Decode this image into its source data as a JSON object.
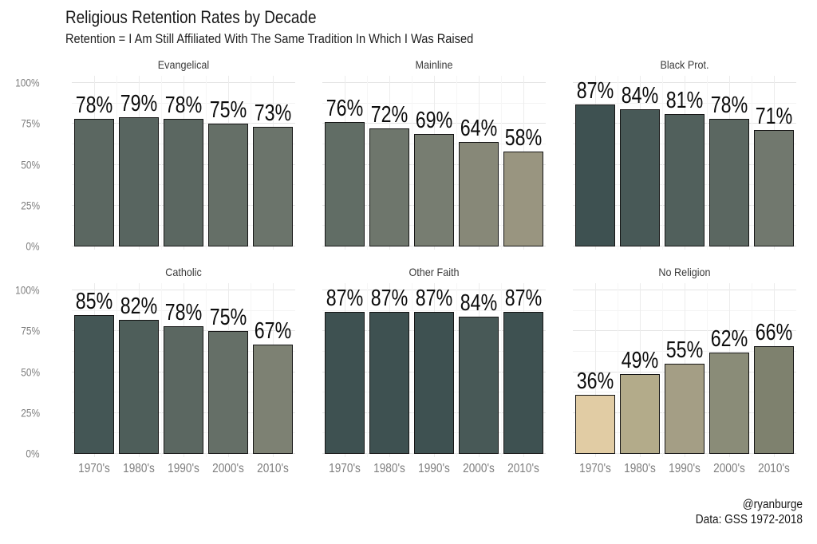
{
  "header": {
    "title": "Religious Retention Rates by Decade",
    "subtitle": "Retention = I Am Still Affiliated With The Same Tradition In Which I Was Raised"
  },
  "caption": {
    "handle": "@ryanburge",
    "source": "Data: GSS 1972-2018"
  },
  "chart_data": {
    "type": "bar",
    "title": "Religious Retention Rates by Decade",
    "subtitle": "Retention = I Am Still Affiliated With The Same Tradition In Which I Was Raised",
    "categories": [
      "1970's",
      "1980's",
      "1990's",
      "2000's",
      "2010's"
    ],
    "xlabel": "",
    "ylabel": "",
    "ylim": [
      0,
      100
    ],
    "y_ticks_display_top_to_bottom": [
      "100%",
      "75%",
      "50%",
      "25%",
      "0%"
    ],
    "y_tick_values_top_to_bottom": [
      100,
      75,
      50,
      25,
      0
    ],
    "grid": true,
    "legend": "none",
    "fill_scale_note": "bar fill mapped to value: cream (low) to dark slate teal (high)",
    "facets": [
      {
        "title": "Evangelical",
        "values": [
          78,
          79,
          78,
          75,
          73
        ],
        "labels": [
          "78%",
          "79%",
          "78%",
          "75%",
          "73%"
        ],
        "colors": [
          "#5b6761",
          "#586560",
          "#5b6761",
          "#656f67",
          "#6b746b"
        ]
      },
      {
        "title": "Mainline",
        "values": [
          76,
          72,
          69,
          64,
          58
        ],
        "labels": [
          "76%",
          "72%",
          "69%",
          "64%",
          "58%"
        ],
        "colors": [
          "#616d65",
          "#6e766c",
          "#777d71",
          "#878878",
          "#999580"
        ]
      },
      {
        "title": "Black Prot.",
        "values": [
          87,
          84,
          81,
          78,
          71
        ],
        "labels": [
          "87%",
          "84%",
          "81%",
          "78%",
          "71%"
        ],
        "colors": [
          "#3e5151",
          "#485957",
          "#51605c",
          "#5b6761",
          "#71786e"
        ]
      },
      {
        "title": "Catholic",
        "values": [
          85,
          82,
          78,
          75,
          67
        ],
        "labels": [
          "85%",
          "82%",
          "78%",
          "75%",
          "67%"
        ],
        "colors": [
          "#445655",
          "#4e5e5a",
          "#5b6761",
          "#656f67",
          "#7d8173"
        ]
      },
      {
        "title": "Other Faith",
        "values": [
          87,
          87,
          87,
          84,
          87
        ],
        "labels": [
          "87%",
          "87%",
          "87%",
          "84%",
          "87%"
        ],
        "colors": [
          "#3e5151",
          "#3e5151",
          "#3e5151",
          "#485957",
          "#3e5151"
        ]
      },
      {
        "title": "No Religion",
        "values": [
          36,
          49,
          55,
          62,
          66
        ],
        "labels": [
          "36%",
          "49%",
          "55%",
          "62%",
          "66%"
        ],
        "colors": [
          "#e1cca4",
          "#b3ab8a",
          "#a49e85",
          "#8a8c78",
          "#7e816e"
        ]
      }
    ]
  }
}
